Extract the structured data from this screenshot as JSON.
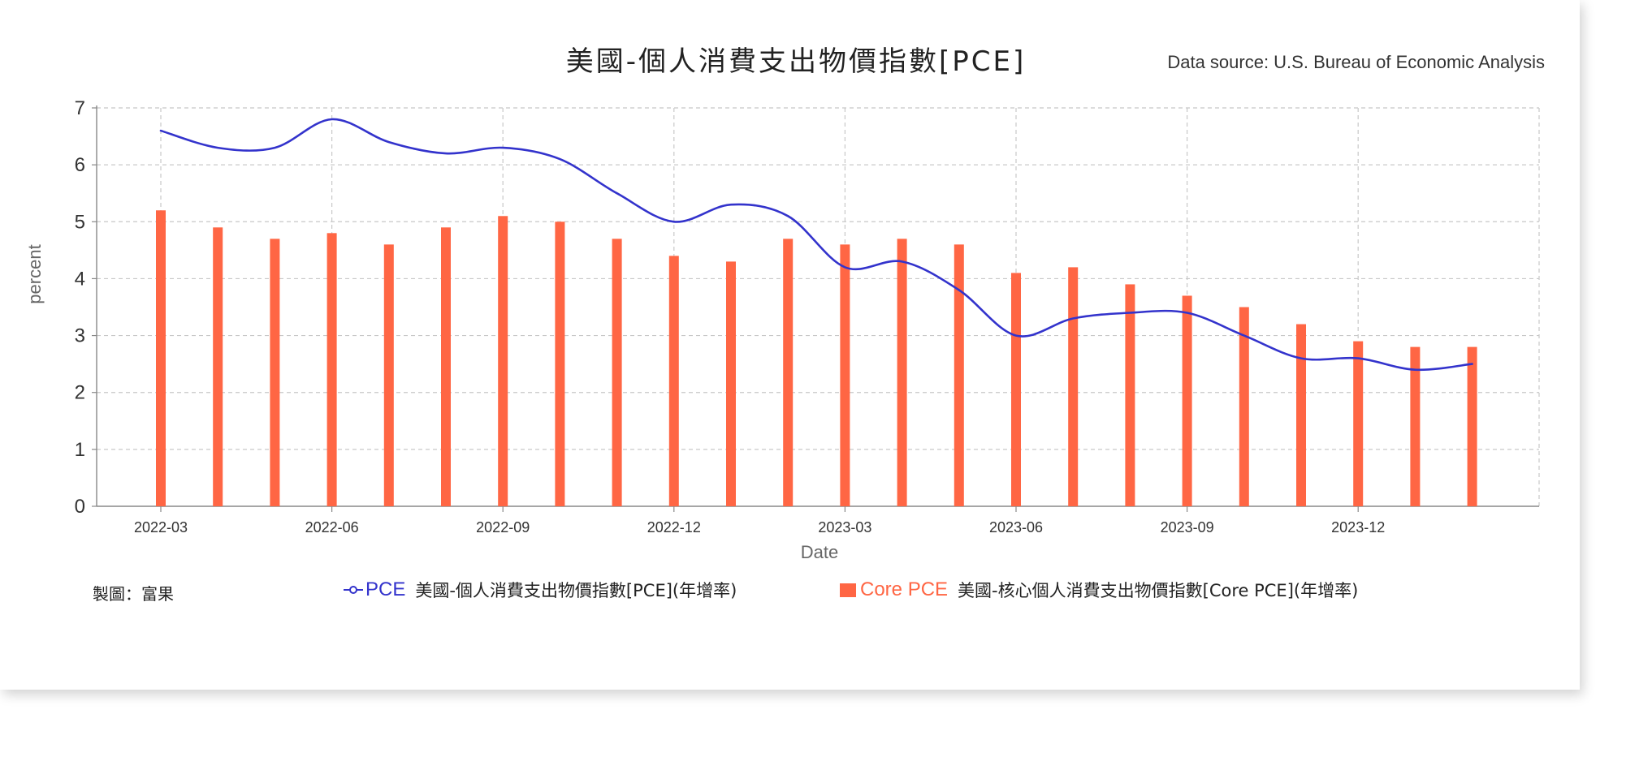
{
  "title": "美國-個人消費支出物價指數[PCE]",
  "source": "Data source: U.S. Bureau of Economic Analysis",
  "credit": "製圖：富果",
  "colors": {
    "pce": "#3333cc",
    "core": "#ff6644",
    "grid": "#c8c8c8",
    "axis": "#888888"
  },
  "legend": {
    "pce_short": "PCE",
    "pce_long": "美國-個人消費支出物價指數[PCE](年增率)",
    "core_short": "Core PCE",
    "core_long": "美國-核心個人消費支出物價指數[Core PCE](年增率)"
  },
  "chart_data": {
    "type": "bar",
    "title": "美國-個人消費支出物價指數[PCE]",
    "xlabel": "Date",
    "ylabel": "percent",
    "ylim": [
      0,
      7
    ],
    "yticks": [
      0,
      1,
      2,
      3,
      4,
      5,
      6,
      7
    ],
    "x_tick_labels": [
      "2022-03",
      "2022-06",
      "2022-09",
      "2022-12",
      "2023-03",
      "2023-06",
      "2023-09",
      "2023-12"
    ],
    "grid": true,
    "legend_position": "bottom",
    "categories": [
      "2022-03",
      "2022-04",
      "2022-05",
      "2022-06",
      "2022-07",
      "2022-08",
      "2022-09",
      "2022-10",
      "2022-11",
      "2022-12",
      "2023-01",
      "2023-02",
      "2023-03",
      "2023-04",
      "2023-05",
      "2023-06",
      "2023-07",
      "2023-08",
      "2023-09",
      "2023-10",
      "2023-11",
      "2023-12",
      "2024-01",
      "2024-02"
    ],
    "series": [
      {
        "name": "PCE",
        "type": "line",
        "values": [
          6.6,
          6.3,
          6.3,
          6.8,
          6.4,
          6.2,
          6.3,
          6.1,
          5.5,
          5.0,
          5.3,
          5.1,
          4.2,
          4.3,
          3.8,
          3.0,
          3.3,
          3.4,
          3.4,
          3.0,
          2.6,
          2.6,
          2.4,
          2.5
        ]
      },
      {
        "name": "Core PCE",
        "type": "bar",
        "values": [
          5.2,
          4.9,
          4.7,
          4.8,
          4.6,
          4.9,
          5.1,
          5.0,
          4.7,
          4.4,
          4.3,
          4.7,
          4.6,
          4.7,
          4.6,
          4.1,
          4.2,
          3.9,
          3.7,
          3.5,
          3.2,
          2.9,
          2.8,
          2.8
        ]
      }
    ]
  }
}
